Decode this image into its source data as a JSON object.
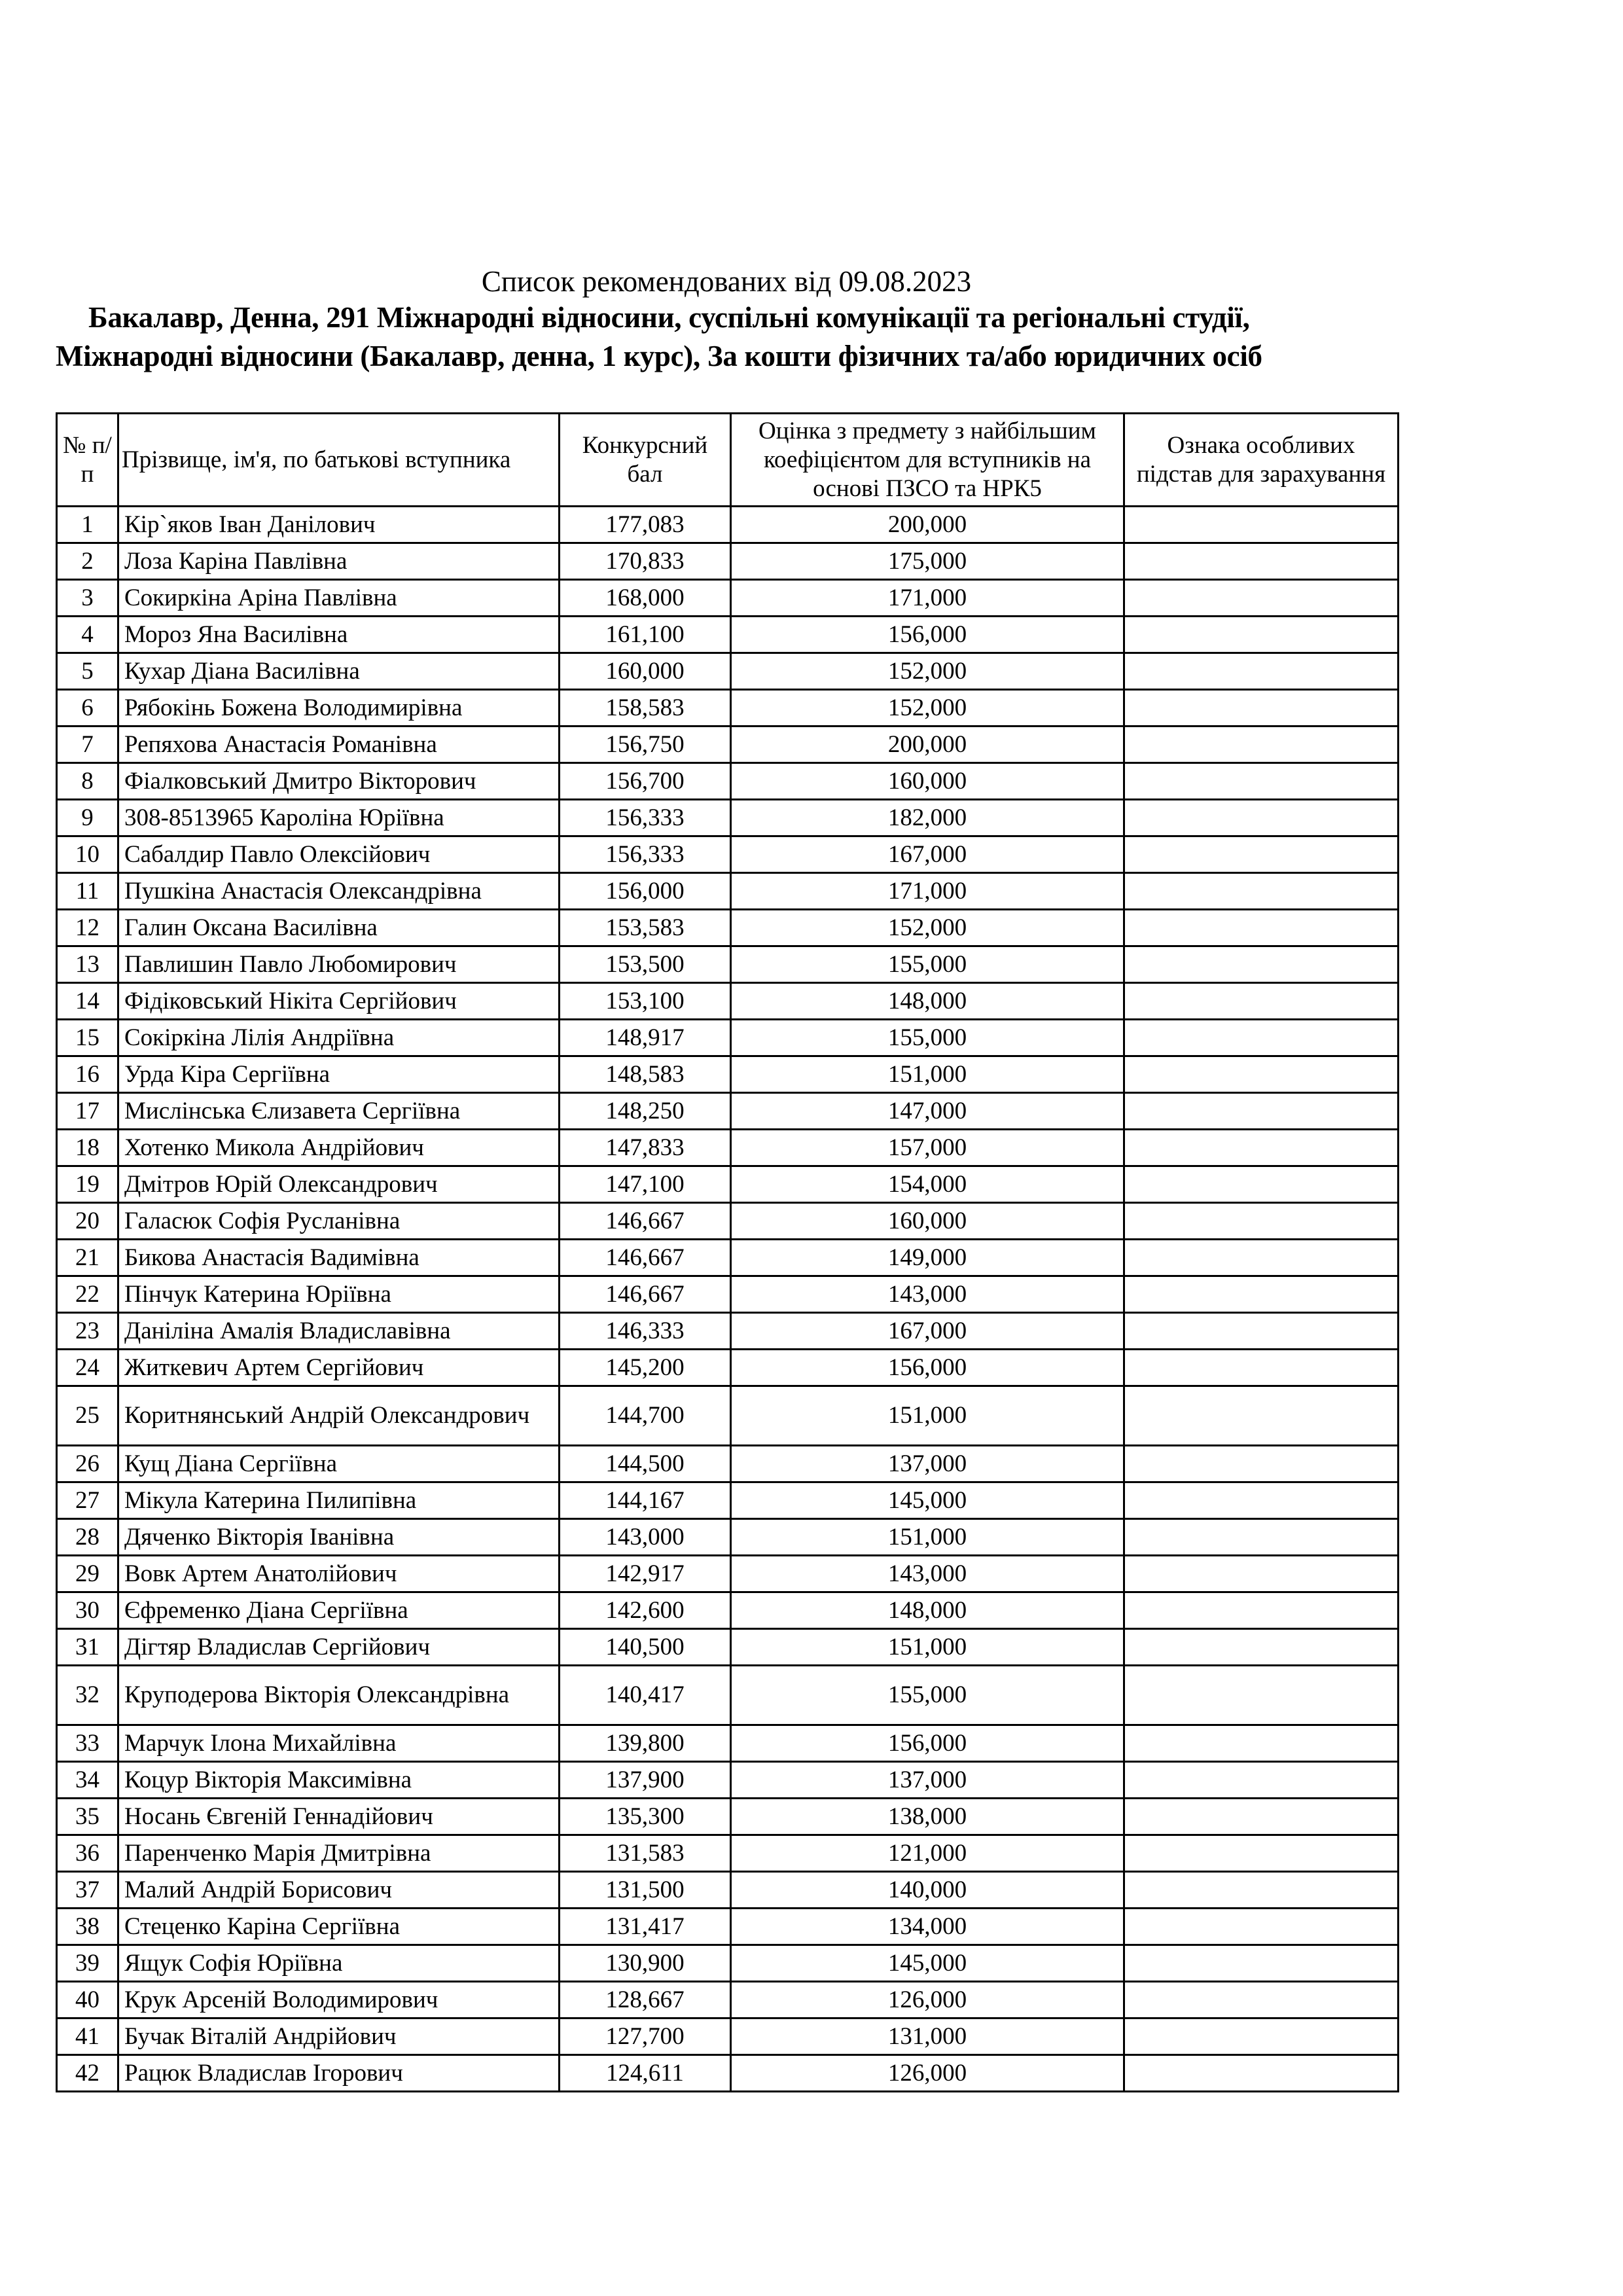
{
  "title": "Список рекомендованих від 09.08.2023",
  "subtitle": "Бакалавр, Денна, 291 Міжнародні відносини, суспільні комунікації та регіональні студії, Міжнародні відносини (Бакалавр, денна, 1 курс), За кошти фізичних та/або юридичних осіб",
  "table": {
    "headers": [
      "№ п/п",
      "Прізвище, ім'я, по батькові вступника",
      "Конкурсний бал",
      "Оцінка з предмету з найбільшим коефіцієнтом для вступників на основі ПЗСО та НРК5",
      "Ознака особливих підстав для зарахування"
    ],
    "rows": [
      [
        "1",
        "Кір`яков Іван Данілович",
        "177,083",
        "200,000",
        ""
      ],
      [
        "2",
        "Лоза Каріна Павлівна",
        "170,833",
        "175,000",
        ""
      ],
      [
        "3",
        "Сокиркіна Аріна Павлівна",
        "168,000",
        "171,000",
        ""
      ],
      [
        "4",
        "Мороз Яна Василівна",
        "161,100",
        "156,000",
        ""
      ],
      [
        "5",
        "Кухар Діана Василівна",
        "160,000",
        "152,000",
        ""
      ],
      [
        "6",
        "Рябокінь Божена Володимирівна",
        "158,583",
        "152,000",
        ""
      ],
      [
        "7",
        "Репяхова Анастасія Романівна",
        "156,750",
        "200,000",
        ""
      ],
      [
        "8",
        "Фіалковський Дмитро Вікторович",
        "156,700",
        "160,000",
        ""
      ],
      [
        "9",
        "308-8513965 Кароліна Юріївна",
        "156,333",
        "182,000",
        ""
      ],
      [
        "10",
        "Сабалдир Павло Олексійович",
        "156,333",
        "167,000",
        ""
      ],
      [
        "11",
        "Пушкіна Анастасія Олександрівна",
        "156,000",
        "171,000",
        ""
      ],
      [
        "12",
        "Галин Оксана Василівна",
        "153,583",
        "152,000",
        ""
      ],
      [
        "13",
        "Павлишин Павло Любомирович",
        "153,500",
        "155,000",
        ""
      ],
      [
        "14",
        "Фідіковський Нікіта Сергійович",
        "153,100",
        "148,000",
        ""
      ],
      [
        "15",
        "Сокіркіна Лілія Андріївна",
        "148,917",
        "155,000",
        ""
      ],
      [
        "16",
        "Урда Кіра Сергіївна",
        "148,583",
        "151,000",
        ""
      ],
      [
        "17",
        "Мислінська Єлизавета Сергіївна",
        "148,250",
        "147,000",
        ""
      ],
      [
        "18",
        "Хотенко Микола Андрійович",
        "147,833",
        "157,000",
        ""
      ],
      [
        "19",
        "Дмітров Юрій Олександрович",
        "147,100",
        "154,000",
        ""
      ],
      [
        "20",
        "Галасюк Софія Русланівна",
        "146,667",
        "160,000",
        ""
      ],
      [
        "21",
        "Бикова Анастасія Вадимівна",
        "146,667",
        "149,000",
        ""
      ],
      [
        "22",
        "Пінчук Катерина Юріївна",
        "146,667",
        "143,000",
        ""
      ],
      [
        "23",
        "Даніліна Амалія Владиславівна",
        "146,333",
        "167,000",
        ""
      ],
      [
        "24",
        "Житкевич Артем Сергійович",
        "145,200",
        "156,000",
        ""
      ],
      [
        "25",
        "Коритнянський Андрій Олександрович",
        "144,700",
        "151,000",
        ""
      ],
      [
        "26",
        "Кущ Діана Сергіївна",
        "144,500",
        "137,000",
        ""
      ],
      [
        "27",
        "Мікула Катерина Пилипівна",
        "144,167",
        "145,000",
        ""
      ],
      [
        "28",
        "Дяченко Вікторія Іванівна",
        "143,000",
        "151,000",
        ""
      ],
      [
        "29",
        "Вовк Артем Анатолійович",
        "142,917",
        "143,000",
        ""
      ],
      [
        "30",
        "Єфременко Діана Сергіївна",
        "142,600",
        "148,000",
        ""
      ],
      [
        "31",
        "Дігтяр Владислав Сергійович",
        "140,500",
        "151,000",
        ""
      ],
      [
        "32",
        "Круподерова Вікторія Олександрівна",
        "140,417",
        "155,000",
        ""
      ],
      [
        "33",
        "Марчук Ілона Михайлівна",
        "139,800",
        "156,000",
        ""
      ],
      [
        "34",
        "Коцур Вікторія Максимівна",
        "137,900",
        "137,000",
        ""
      ],
      [
        "35",
        "Носань Євгеній Геннадійович",
        "135,300",
        "138,000",
        ""
      ],
      [
        "36",
        "Паренченко Марія Дмитрівна",
        "131,583",
        "121,000",
        ""
      ],
      [
        "37",
        "Малий Андрій Борисович",
        "131,500",
        "140,000",
        ""
      ],
      [
        "38",
        "Стеценко Каріна Сергіївна",
        "131,417",
        "134,000",
        ""
      ],
      [
        "39",
        "Ящук Софія Юріївна",
        "130,900",
        "145,000",
        ""
      ],
      [
        "40",
        "Крук Арсеній Володимирович",
        "128,667",
        "126,000",
        ""
      ],
      [
        "41",
        "Бучак Віталій Андрійович",
        "127,700",
        "131,000",
        ""
      ],
      [
        "42",
        "Рацюк Владислав Ігорович",
        "124,611",
        "126,000",
        ""
      ]
    ]
  }
}
